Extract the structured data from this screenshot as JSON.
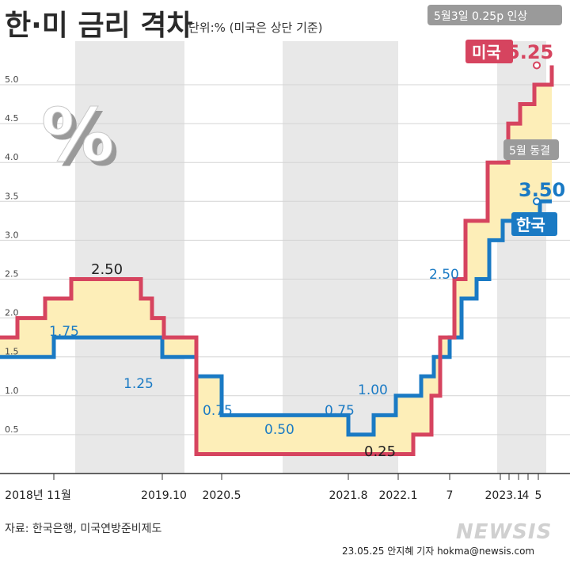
{
  "header": {
    "title": "한·미 금리 격차",
    "subtitle": "단위:% (미국은 상단 기준)"
  },
  "callouts": {
    "us_event": "5월3일 0.25p 인상",
    "kr_event": "5월 동결"
  },
  "footer": {
    "source": "자료: 한국은행, 미국연방준비제도",
    "credit": "23.05.25 안지혜 기자 hokma@newsis.com",
    "logo": "NEWSIS"
  },
  "colors": {
    "us": "#d6445f",
    "kr": "#1a7ac4",
    "gap_fill": "#fdeeb8",
    "band": "#e8e8e8"
  },
  "chart_data": {
    "type": "line",
    "step": true,
    "ylim": [
      0,
      5.5
    ],
    "y_ticks": [
      "0.5",
      "1.0",
      "1.5",
      "2.0",
      "2.5",
      "3.0",
      "3.5",
      "4.0",
      "4.5",
      "5.0"
    ],
    "x_ticks": [
      "2018년 11월",
      "2019.10",
      "2020.5",
      "2021.8",
      "2022.1",
      "7",
      "2023.1",
      "4",
      "5"
    ],
    "fill_between": true,
    "series": [
      {
        "name": "미국",
        "color": "#d6445f",
        "values": [
          1.75,
          2.0,
          2.25,
          2.5,
          2.25,
          2.0,
          1.75,
          0.25,
          0.5,
          1.0,
          1.75,
          2.5,
          3.25,
          4.0,
          4.5,
          4.75,
          5.0,
          5.25
        ]
      },
      {
        "name": "한국",
        "color": "#1a7ac4",
        "values": [
          1.5,
          1.75,
          1.5,
          1.25,
          0.75,
          0.5,
          0.75,
          1.0,
          1.25,
          1.5,
          1.75,
          2.25,
          2.5,
          3.0,
          3.25,
          3.5
        ]
      }
    ],
    "data_labels": [
      {
        "text": "2.50",
        "series": "미국"
      },
      {
        "text": "1.75",
        "series": "한국"
      },
      {
        "text": "1.25",
        "series": "한국"
      },
      {
        "text": "0.75",
        "series": "한국"
      },
      {
        "text": "0.50",
        "series": "한국"
      },
      {
        "text": "0.75",
        "series": "한국"
      },
      {
        "text": "1.00",
        "series": "한국"
      },
      {
        "text": "2.50",
        "series": "한국"
      },
      {
        "text": "0.25",
        "series": "미국"
      },
      {
        "text": "5.25",
        "series": "미국"
      },
      {
        "text": "3.50",
        "series": "한국"
      }
    ]
  }
}
